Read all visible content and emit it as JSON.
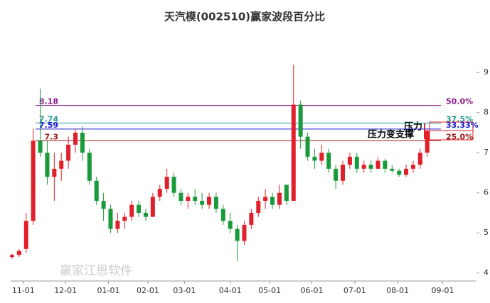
{
  "chart_data": {
    "type": "candlestick",
    "title": "天汽模(002510)赢家波段百分比",
    "watermark": "赢家江恩软件",
    "up_color": "#e0202a",
    "down_color": "#1a9a3a",
    "xlim": [
      -0.2,
      66
    ],
    "ylim": [
      3.8,
      9.5
    ],
    "yticks": [
      4,
      5,
      6,
      7,
      8,
      9
    ],
    "xticks": [
      {
        "value": 1.6,
        "label": "11-01"
      },
      {
        "value": 7.6,
        "label": "12-01"
      },
      {
        "value": 13.7,
        "label": "01-01"
      },
      {
        "value": 19.3,
        "label": "02-01"
      },
      {
        "value": 24.5,
        "label": "03-01"
      },
      {
        "value": 31.0,
        "label": "04-01"
      },
      {
        "value": 36.6,
        "label": "05-01"
      },
      {
        "value": 42.6,
        "label": "06-01"
      },
      {
        "value": 48.7,
        "label": "07-01"
      },
      {
        "value": 54.8,
        "label": "08-01"
      },
      {
        "value": 61.2,
        "label": "09-01"
      }
    ],
    "open": [
      4.4,
      4.45,
      4.6,
      5.3,
      7.3,
      7.0,
      6.4,
      6.6,
      6.8,
      7.2,
      7.5,
      7.0,
      6.3,
      5.8,
      5.6,
      5.1,
      5.3,
      5.4,
      5.7,
      5.5,
      5.4,
      5.9,
      6.1,
      6.4,
      6.0,
      5.8,
      5.9,
      5.8,
      5.7,
      5.9,
      5.6,
      5.3,
      5.1,
      4.8,
      5.2,
      5.5,
      5.8,
      5.9,
      5.7,
      6.2,
      5.8,
      8.2,
      7.4,
      6.9,
      6.8,
      7.0,
      6.6,
      6.3,
      6.7,
      6.9,
      6.6,
      6.7,
      6.6,
      6.8,
      6.6,
      6.55,
      6.45,
      6.6,
      6.7,
      7.0
    ],
    "high": [
      4.48,
      4.6,
      5.5,
      7.6,
      8.6,
      7.3,
      7.0,
      7.0,
      7.4,
      7.6,
      7.65,
      7.1,
      6.4,
      6.0,
      5.7,
      5.5,
      5.5,
      5.8,
      5.8,
      5.6,
      6.0,
      6.2,
      6.6,
      6.5,
      6.1,
      6.0,
      6.1,
      6.0,
      6.0,
      6.0,
      5.7,
      5.5,
      5.2,
      5.3,
      5.6,
      5.9,
      6.1,
      6.0,
      6.2,
      6.2,
      9.2,
      8.3,
      7.5,
      7.1,
      7.2,
      7.1,
      6.7,
      6.8,
      7.0,
      7.0,
      6.8,
      6.8,
      6.9,
      6.85,
      6.7,
      6.6,
      6.7,
      6.8,
      7.1,
      7.6
    ],
    "low": [
      4.35,
      4.4,
      4.5,
      5.2,
      6.9,
      6.2,
      5.8,
      6.3,
      6.6,
      7.0,
      6.8,
      6.2,
      5.7,
      5.3,
      5.0,
      5.0,
      5.1,
      5.3,
      5.4,
      5.3,
      5.4,
      5.8,
      6.0,
      5.9,
      5.7,
      5.6,
      5.7,
      5.6,
      5.6,
      5.5,
      5.2,
      5.0,
      4.3,
      4.7,
      5.1,
      5.4,
      5.6,
      5.6,
      5.6,
      5.7,
      5.8,
      7.1,
      6.8,
      6.6,
      6.7,
      6.5,
      6.1,
      6.2,
      6.6,
      6.5,
      6.5,
      6.5,
      6.6,
      6.5,
      6.5,
      6.4,
      6.4,
      6.5,
      6.6,
      6.9
    ],
    "close": [
      4.45,
      4.55,
      5.3,
      7.3,
      7.0,
      6.4,
      6.6,
      6.8,
      7.2,
      7.5,
      7.0,
      6.3,
      5.8,
      5.6,
      5.1,
      5.3,
      5.4,
      5.7,
      5.5,
      5.4,
      5.9,
      6.1,
      6.4,
      6.0,
      5.8,
      5.9,
      5.8,
      5.7,
      5.9,
      5.6,
      5.3,
      5.1,
      4.8,
      5.2,
      5.5,
      5.8,
      5.9,
      5.7,
      6.0,
      5.8,
      8.2,
      7.4,
      6.9,
      6.8,
      7.0,
      6.6,
      6.3,
      6.7,
      6.9,
      6.6,
      6.7,
      6.6,
      6.8,
      6.6,
      6.55,
      6.45,
      6.6,
      6.7,
      7.0,
      7.55
    ],
    "levels": [
      {
        "value": 8.18,
        "pct": "50.0%",
        "color": "#8b1a8b"
      },
      {
        "value": 7.74,
        "pct": "37.5%",
        "color": "#2a9a9a"
      },
      {
        "value": 7.59,
        "pct": "33.33%",
        "color": "#1a1ad0"
      },
      {
        "value": 7.3,
        "pct": "25.0%",
        "color": "#a01a1a"
      }
    ],
    "annotations": [
      "压力",
      "压力变支撑"
    ]
  }
}
